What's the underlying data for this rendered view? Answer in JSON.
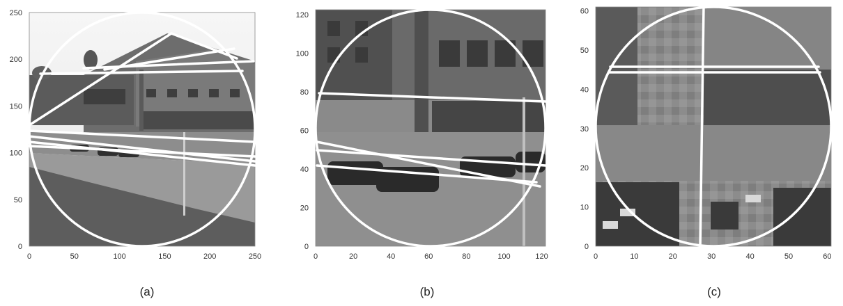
{
  "figure": {
    "panels": [
      {
        "caption": "(a)",
        "x_ticks": [
          "0",
          "50",
          "100",
          "150",
          "200",
          "250"
        ],
        "y_ticks": [
          "0",
          "50",
          "100",
          "150",
          "200",
          "250"
        ],
        "xlim": [
          0,
          250
        ],
        "ylim": [
          0,
          250
        ],
        "content": "grayscale photo of office building and parking lot with overlaid white circle and white line segments",
        "circle": {
          "cx": 125,
          "cy": 125,
          "r": 125
        }
      },
      {
        "caption": "(b)",
        "x_ticks": [
          "0",
          "20",
          "40",
          "60",
          "80",
          "100",
          "120"
        ],
        "y_ticks": [
          "0",
          "20",
          "40",
          "60",
          "80",
          "100",
          "120"
        ],
        "xlim": [
          0,
          122
        ],
        "ylim": [
          0,
          122
        ],
        "content": "zoomed grayscale photo of building facade and parked cars with overlaid white circle and white line segments",
        "circle": {
          "cx": 61,
          "cy": 61,
          "r": 61
        }
      },
      {
        "caption": "(c)",
        "x_ticks": [
          "0",
          "10",
          "20",
          "30",
          "40",
          "50",
          "60"
        ],
        "y_ticks": [
          "0",
          "10",
          "20",
          "30",
          "40",
          "50",
          "60"
        ],
        "xlim": [
          0,
          61
        ],
        "ylim": [
          0,
          61
        ],
        "content": "pixelated grayscale image crop with overlaid white circle, one near-vertical and two horizontal white lines",
        "circle": {
          "cx": 30.5,
          "cy": 30.5,
          "r": 30.5
        }
      }
    ]
  }
}
